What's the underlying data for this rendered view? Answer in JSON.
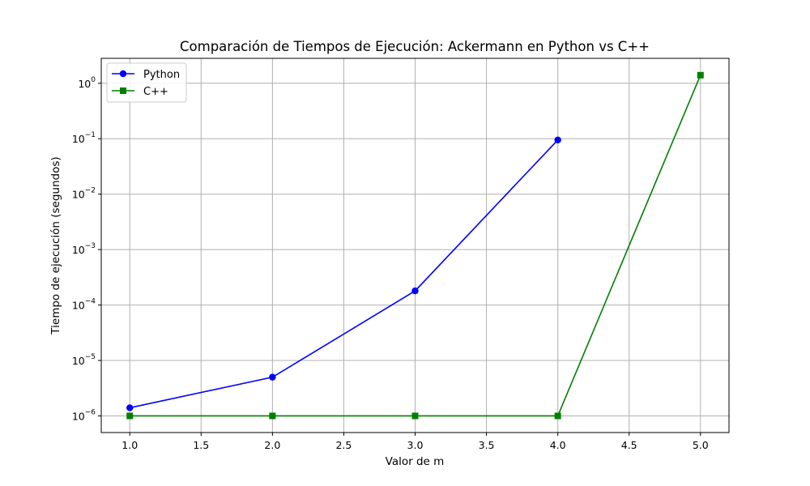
{
  "chart_data": {
    "type": "line",
    "title": "Comparación de Tiempos de Ejecución: Ackermann en Python vs C++",
    "xlabel": "Valor de m",
    "ylabel": "Tiempo de ejecución (segundos)",
    "xlim": [
      0.8,
      5.2
    ],
    "ylim_exponent": [
      -6.3,
      0.45
    ],
    "yscale": "log",
    "grid": true,
    "legend_position": "top-left",
    "x_ticks": [
      1.0,
      1.5,
      2.0,
      2.5,
      3.0,
      3.5,
      4.0,
      4.5,
      5.0
    ],
    "x_tick_labels": [
      "1.0",
      "1.5",
      "2.0",
      "2.5",
      "3.0",
      "3.5",
      "4.0",
      "4.5",
      "5.0"
    ],
    "y_tick_exponents": [
      -6,
      -5,
      -4,
      -3,
      -2,
      -1,
      0
    ],
    "y_tick_base": "10",
    "series": [
      {
        "name": "Python",
        "color": "#0000ff",
        "marker": "circle",
        "x": [
          1,
          2,
          3,
          4
        ],
        "y": [
          1.4e-06,
          5e-06,
          0.00018,
          0.095
        ]
      },
      {
        "name": "C++",
        "color": "#008000",
        "marker": "square",
        "x": [
          1,
          2,
          3,
          4,
          5
        ],
        "y": [
          1e-06,
          1e-06,
          1e-06,
          1e-06,
          1.4
        ]
      }
    ]
  }
}
